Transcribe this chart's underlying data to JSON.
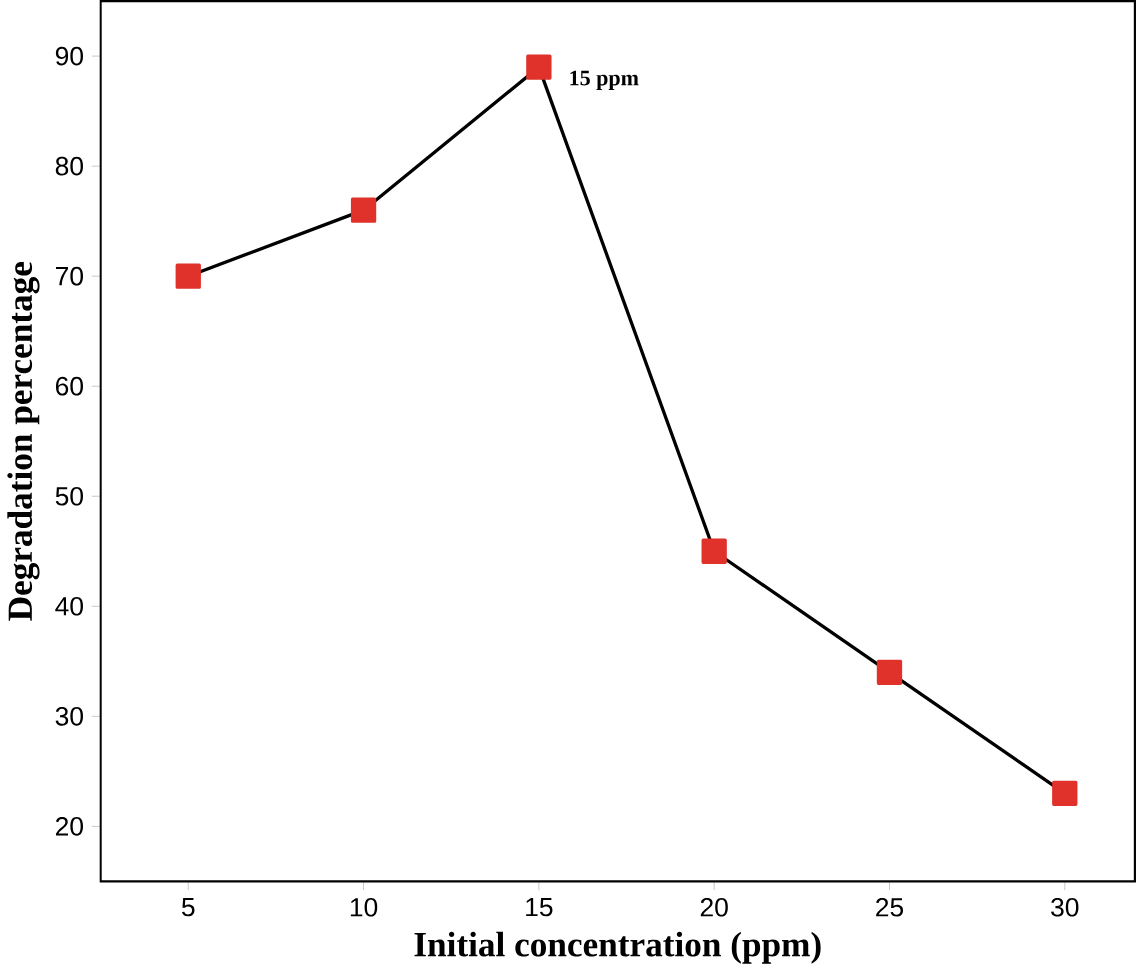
{
  "chart_data": {
    "type": "line",
    "xlabel": "Initial concentration (ppm)",
    "ylabel": "Degradation percentage",
    "x": [
      5,
      10,
      15,
      20,
      25,
      30
    ],
    "series": [
      {
        "color": "#e0312a",
        "values": [
          70,
          76,
          89,
          45,
          34,
          23
        ]
      }
    ],
    "xlim": [
      2.5,
      32
    ],
    "ylim": [
      15,
      95
    ],
    "xticks": [
      5,
      10,
      15,
      20,
      25,
      30
    ],
    "yticks": [
      20,
      30,
      40,
      50,
      60,
      70,
      80,
      90
    ],
    "marker": "square",
    "line_style": "solid",
    "annotations": [
      {
        "text": "15 ppm",
        "x": 15,
        "y": 89
      }
    ]
  }
}
